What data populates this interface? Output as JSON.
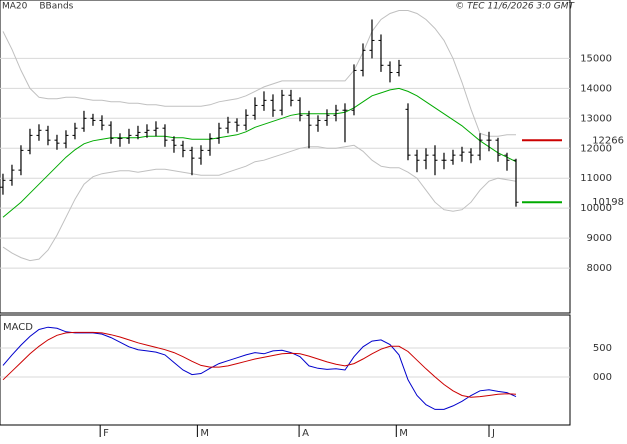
{
  "chart_data": [
    {
      "type": "ohlc",
      "caption": "© TEC 11/6/2026 3:0 GMT",
      "color": "#000000",
      "xlim": [
        -0.33,
        63
      ],
      "ylim": [
        6500,
        16950
      ],
      "yticks": [
        8000,
        9000,
        10000,
        11000,
        12000,
        13000,
        14000,
        15000
      ],
      "grid": true,
      "open": [
        10700,
        10930,
        11270,
        11930,
        12430,
        12600,
        12270,
        12170,
        12430,
        12670,
        13000,
        12930,
        12770,
        12330,
        12330,
        12430,
        12530,
        12600,
        12670,
        12270,
        12100,
        11930,
        11670,
        11930,
        12330,
        12670,
        12870,
        12770,
        13100,
        13430,
        13600,
        13270,
        13770,
        13600,
        13100,
        12770,
        12930,
        13100,
        13270,
        13270,
        14600,
        15270,
        15600,
        14770,
        14530,
        13300,
        11770,
        11600,
        11770,
        11600,
        11600,
        11770,
        11870,
        11770,
        12270,
        12270,
        11770,
        11600
      ],
      "high": [
        11150,
        11450,
        12100,
        12650,
        12800,
        12750,
        12450,
        12600,
        12850,
        13250,
        13150,
        13100,
        12900,
        12500,
        12650,
        12750,
        12800,
        12900,
        12800,
        12400,
        12250,
        12050,
        12100,
        12500,
        12850,
        13050,
        13000,
        13300,
        13700,
        13900,
        13800,
        13950,
        13950,
        13700,
        13250,
        13100,
        13300,
        13450,
        13500,
        14800,
        15500,
        16300,
        15800,
        14900,
        14950,
        13500,
        11950,
        12000,
        12100,
        11850,
        11950,
        12050,
        12000,
        12500,
        12550,
        12350,
        11850,
        11650
      ],
      "low": [
        10450,
        10750,
        11100,
        11800,
        12250,
        12100,
        11950,
        12000,
        12300,
        12550,
        12750,
        12600,
        12150,
        12050,
        12150,
        12300,
        12350,
        12400,
        12050,
        11850,
        11700,
        11100,
        11450,
        11750,
        12150,
        12500,
        12550,
        12600,
        12950,
        13250,
        13050,
        13100,
        13400,
        12900,
        12000,
        12550,
        12750,
        12900,
        12200,
        13100,
        14400,
        15000,
        14550,
        14200,
        14400,
        11600,
        11200,
        11300,
        11100,
        11300,
        11450,
        11550,
        11500,
        11600,
        11900,
        11550,
        11250,
        10050
      ],
      "close": [
        10930,
        11270,
        11930,
        12430,
        12600,
        12270,
        12170,
        12430,
        12670,
        13000,
        12930,
        12770,
        12330,
        12330,
        12430,
        12530,
        12600,
        12670,
        12270,
        12100,
        11930,
        11670,
        11930,
        12330,
        12670,
        12870,
        12770,
        13100,
        13430,
        13600,
        13270,
        13770,
        13600,
        13100,
        12770,
        12930,
        13100,
        13270,
        13270,
        14600,
        15270,
        15600,
        14770,
        14530,
        14770,
        11770,
        11600,
        11770,
        11600,
        11600,
        11770,
        11870,
        11770,
        12270,
        12270,
        11770,
        11600,
        10198
      ],
      "series": [
        {
          "name": "MA20",
          "color": "#00aa00",
          "values": [
            9700,
            9950,
            10200,
            10500,
            10800,
            11100,
            11400,
            11700,
            11950,
            12150,
            12250,
            12300,
            12350,
            12350,
            12350,
            12350,
            12400,
            12400,
            12400,
            12350,
            12350,
            12300,
            12300,
            12300,
            12350,
            12400,
            12450,
            12550,
            12700,
            12800,
            12900,
            13000,
            13100,
            13150,
            13150,
            13150,
            13150,
            13150,
            13200,
            13350,
            13550,
            13750,
            13850,
            13950,
            14000,
            13900,
            13750,
            13550,
            13350,
            13150,
            12950,
            12750,
            12500,
            12250,
            12050,
            11850,
            11700,
            11550
          ]
        },
        {
          "name": "BBands",
          "color": "#c0c0c0",
          "upper": [
            15900,
            15300,
            14600,
            14000,
            13700,
            13650,
            13650,
            13700,
            13700,
            13650,
            13600,
            13600,
            13550,
            13550,
            13500,
            13500,
            13450,
            13450,
            13400,
            13400,
            13400,
            13400,
            13400,
            13450,
            13550,
            13600,
            13650,
            13750,
            13900,
            14050,
            14150,
            14250,
            14250,
            14250,
            14250,
            14250,
            14250,
            14250,
            14250,
            14600,
            15200,
            15900,
            16300,
            16500,
            16600,
            16600,
            16500,
            16300,
            16000,
            15600,
            15000,
            14200,
            13300,
            12500,
            12400,
            12400,
            12450,
            12450
          ],
          "lower": [
            8700,
            8500,
            8350,
            8250,
            8300,
            8600,
            9100,
            9700,
            10300,
            10800,
            11050,
            11150,
            11200,
            11250,
            11250,
            11200,
            11250,
            11300,
            11300,
            11250,
            11200,
            11150,
            11100,
            11100,
            11100,
            11200,
            11300,
            11400,
            11550,
            11600,
            11700,
            11800,
            11900,
            12000,
            12050,
            12050,
            12000,
            12000,
            12050,
            12100,
            11900,
            11600,
            11400,
            11350,
            11350,
            11200,
            11000,
            10600,
            10200,
            9950,
            9900,
            9950,
            10200,
            10600,
            10900,
            11000,
            10950,
            10900
          ]
        }
      ],
      "levels": [
        {
          "value": 12266,
          "color": "#cc0000"
        },
        {
          "value": 10198,
          "color": "#00aa00"
        }
      ]
    },
    {
      "type": "line",
      "title": "MACD",
      "ylim": [
        -830,
        1070
      ],
      "yticks": [
        {
          "value": 0,
          "label": "000"
        },
        500
      ],
      "xticks": [
        {
          "value": 10.8,
          "label": "F"
        },
        {
          "value": 21.6,
          "label": "M"
        },
        {
          "value": 32.9,
          "label": "A"
        },
        {
          "value": 43.7,
          "label": "M"
        },
        {
          "value": 54,
          "label": "J"
        }
      ],
      "series": [
        {
          "color": "#0000cc",
          "values": [
            200,
            380,
            550,
            700,
            820,
            860,
            840,
            780,
            760,
            760,
            760,
            740,
            680,
            600,
            520,
            470,
            450,
            430,
            380,
            250,
            120,
            40,
            60,
            150,
            230,
            280,
            330,
            380,
            420,
            400,
            450,
            460,
            420,
            350,
            190,
            150,
            130,
            140,
            120,
            350,
            520,
            620,
            640,
            560,
            380,
            -50,
            -320,
            -480,
            -560,
            -560,
            -500,
            -420,
            -320,
            -240,
            -220,
            -250,
            -270,
            -340
          ]
        },
        {
          "color": "#cc0000",
          "values": [
            -50,
            100,
            250,
            400,
            530,
            640,
            720,
            760,
            770,
            770,
            770,
            760,
            730,
            690,
            640,
            590,
            550,
            510,
            470,
            420,
            350,
            270,
            200,
            170,
            170,
            190,
            230,
            270,
            310,
            340,
            370,
            400,
            410,
            400,
            360,
            310,
            260,
            220,
            190,
            230,
            310,
            400,
            480,
            530,
            530,
            440,
            290,
            140,
            0,
            -130,
            -240,
            -320,
            -350,
            -340,
            -320,
            -300,
            -290,
            -300
          ]
        }
      ]
    }
  ]
}
